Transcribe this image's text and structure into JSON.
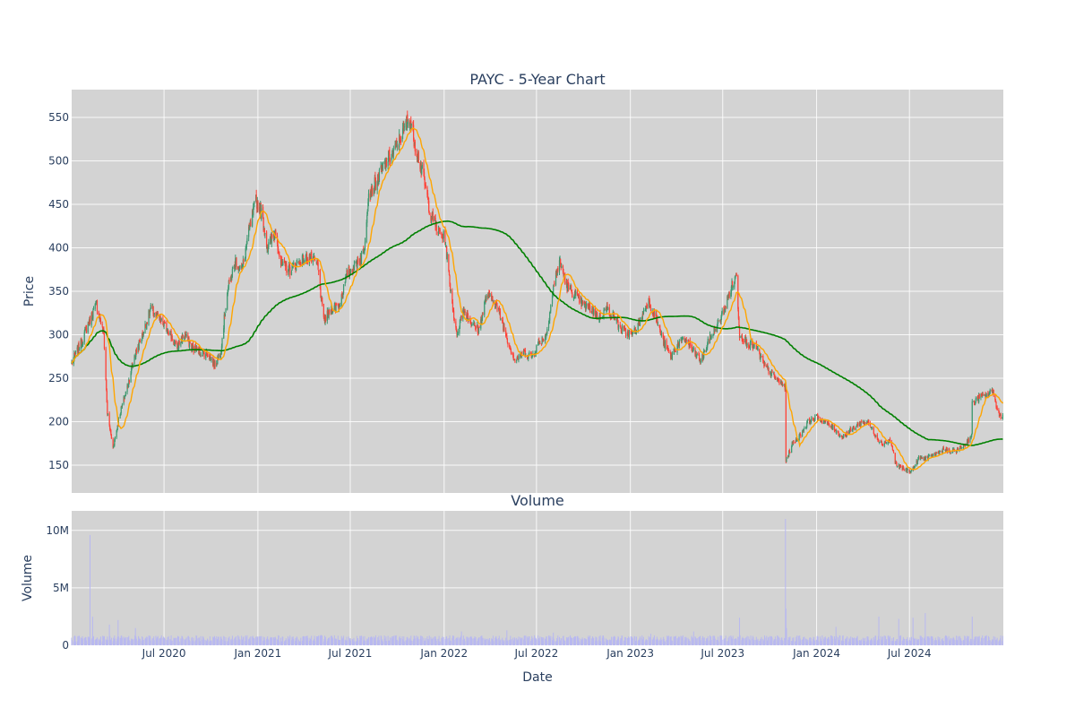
{
  "chart_data": [
    {
      "type": "candlestick",
      "title": "PAYC - 5-Year Chart",
      "xlabel": "",
      "ylabel": "Price",
      "ylim": [
        118,
        582
      ],
      "yticks": [
        150,
        200,
        250,
        300,
        350,
        400,
        450,
        500,
        550
      ],
      "colors": {
        "up": "#3d9970",
        "down": "#ff4136",
        "ma_short": "#ffa500",
        "ma_long": "#008000",
        "plot_bg": "#d3d3d3"
      },
      "close_waypoints": [
        [
          "2020-01-02",
          268
        ],
        [
          "2020-01-20",
          290
        ],
        [
          "2020-02-10",
          322
        ],
        [
          "2020-02-20",
          335
        ],
        [
          "2020-03-05",
          300
        ],
        [
          "2020-03-12",
          210
        ],
        [
          "2020-03-23",
          170
        ],
        [
          "2020-04-06",
          210
        ],
        [
          "2020-04-20",
          240
        ],
        [
          "2020-05-04",
          275
        ],
        [
          "2020-05-20",
          300
        ],
        [
          "2020-06-05",
          330
        ],
        [
          "2020-06-25",
          315
        ],
        [
          "2020-07-10",
          305
        ],
        [
          "2020-07-25",
          285
        ],
        [
          "2020-08-10",
          300
        ],
        [
          "2020-08-25",
          285
        ],
        [
          "2020-09-10",
          280
        ],
        [
          "2020-09-25",
          278
        ],
        [
          "2020-10-08",
          265
        ],
        [
          "2020-10-20",
          280
        ],
        [
          "2020-11-02",
          350
        ],
        [
          "2020-11-18",
          385
        ],
        [
          "2020-12-01",
          375
        ],
        [
          "2020-12-15",
          420
        ],
        [
          "2020-12-28",
          455
        ],
        [
          "2021-01-08",
          440
        ],
        [
          "2021-01-20",
          400
        ],
        [
          "2021-02-05",
          420
        ],
        [
          "2021-02-15",
          380
        ],
        [
          "2021-03-05",
          375
        ],
        [
          "2021-03-25",
          385
        ],
        [
          "2021-04-12",
          390
        ],
        [
          "2021-04-28",
          380
        ],
        [
          "2021-05-10",
          315
        ],
        [
          "2021-05-25",
          330
        ],
        [
          "2021-06-10",
          335
        ],
        [
          "2021-06-25",
          370
        ],
        [
          "2021-07-10",
          380
        ],
        [
          "2021-07-28",
          395
        ],
        [
          "2021-08-05",
          460
        ],
        [
          "2021-08-25",
          480
        ],
        [
          "2021-09-10",
          500
        ],
        [
          "2021-09-25",
          510
        ],
        [
          "2021-10-10",
          530
        ],
        [
          "2021-10-25",
          550
        ],
        [
          "2021-11-05",
          520
        ],
        [
          "2021-11-22",
          480
        ],
        [
          "2021-12-05",
          440
        ],
        [
          "2021-12-20",
          420
        ],
        [
          "2022-01-03",
          410
        ],
        [
          "2022-01-12",
          360
        ],
        [
          "2022-01-25",
          300
        ],
        [
          "2022-02-08",
          330
        ],
        [
          "2022-02-22",
          315
        ],
        [
          "2022-03-10",
          305
        ],
        [
          "2022-03-25",
          345
        ],
        [
          "2022-04-08",
          340
        ],
        [
          "2022-04-22",
          320
        ],
        [
          "2022-05-05",
          295
        ],
        [
          "2022-05-20",
          270
        ],
        [
          "2022-06-06",
          280
        ],
        [
          "2022-06-22",
          275
        ],
        [
          "2022-07-05",
          290
        ],
        [
          "2022-07-20",
          300
        ],
        [
          "2022-08-05",
          360
        ],
        [
          "2022-08-15",
          385
        ],
        [
          "2022-08-30",
          355
        ],
        [
          "2022-09-15",
          345
        ],
        [
          "2022-09-30",
          335
        ],
        [
          "2022-10-15",
          330
        ],
        [
          "2022-11-01",
          320
        ],
        [
          "2022-11-15",
          330
        ],
        [
          "2022-12-01",
          320
        ],
        [
          "2022-12-15",
          305
        ],
        [
          "2023-01-05",
          300
        ],
        [
          "2023-01-20",
          315
        ],
        [
          "2023-02-05",
          340
        ],
        [
          "2023-02-20",
          320
        ],
        [
          "2023-03-08",
          290
        ],
        [
          "2023-03-22",
          275
        ],
        [
          "2023-04-05",
          290
        ],
        [
          "2023-04-20",
          295
        ],
        [
          "2023-05-05",
          280
        ],
        [
          "2023-05-20",
          270
        ],
        [
          "2023-06-05",
          295
        ],
        [
          "2023-06-20",
          310
        ],
        [
          "2023-07-05",
          330
        ],
        [
          "2023-07-18",
          355
        ],
        [
          "2023-07-28",
          368
        ],
        [
          "2023-08-03",
          300
        ],
        [
          "2023-08-20",
          290
        ],
        [
          "2023-09-05",
          285
        ],
        [
          "2023-09-20",
          265
        ],
        [
          "2023-10-05",
          255
        ],
        [
          "2023-10-20",
          245
        ],
        [
          "2023-11-01",
          240
        ],
        [
          "2023-11-02",
          155
        ],
        [
          "2023-11-15",
          175
        ],
        [
          "2023-12-01",
          185
        ],
        [
          "2023-12-15",
          200
        ],
        [
          "2024-01-02",
          205
        ],
        [
          "2024-01-20",
          198
        ],
        [
          "2024-02-05",
          192
        ],
        [
          "2024-02-20",
          182
        ],
        [
          "2024-03-08",
          190
        ],
        [
          "2024-03-25",
          198
        ],
        [
          "2024-04-10",
          200
        ],
        [
          "2024-04-25",
          185
        ],
        [
          "2024-05-08",
          175
        ],
        [
          "2024-05-25",
          178
        ],
        [
          "2024-06-05",
          150
        ],
        [
          "2024-06-20",
          145
        ],
        [
          "2024-07-05",
          143
        ],
        [
          "2024-07-20",
          158
        ],
        [
          "2024-08-05",
          158
        ],
        [
          "2024-08-20",
          162
        ],
        [
          "2024-09-05",
          168
        ],
        [
          "2024-09-20",
          165
        ],
        [
          "2024-10-05",
          168
        ],
        [
          "2024-10-20",
          175
        ],
        [
          "2024-10-31",
          185
        ],
        [
          "2024-11-01",
          220
        ],
        [
          "2024-11-15",
          228
        ],
        [
          "2024-12-01",
          230
        ],
        [
          "2024-12-12",
          237
        ],
        [
          "2024-12-20",
          212
        ],
        [
          "2024-12-31",
          205
        ]
      ]
    },
    {
      "type": "bar",
      "title": "Volume",
      "xlabel": "Date",
      "ylabel": "Volume",
      "ylim": [
        0,
        11700000
      ],
      "yticks": [
        0,
        5000000,
        10000000
      ],
      "ytick_labels": [
        "0",
        "5M",
        "10M"
      ],
      "xlim": [
        "2020-01-02",
        "2025-01-01"
      ],
      "xticks": [
        "2020-07-01",
        "2021-01-01",
        "2021-07-01",
        "2022-01-01",
        "2022-07-01",
        "2023-01-01",
        "2023-07-01",
        "2024-01-01",
        "2024-07-01"
      ],
      "xtick_labels": [
        "Jul 2020",
        "Jan 2021",
        "Jul 2021",
        "Jan 2022",
        "Jul 2022",
        "Jan 2023",
        "Jul 2023",
        "Jan 2024",
        "Jul 2024"
      ],
      "colors": {
        "bar": "#b8b8f0",
        "plot_bg": "#d3d3d3"
      },
      "typical_volume": 600000,
      "spikes": [
        [
          "2020-02-07",
          9600000
        ],
        [
          "2020-02-12",
          2500000
        ],
        [
          "2020-03-16",
          1800000
        ],
        [
          "2020-04-02",
          2200000
        ],
        [
          "2020-05-06",
          1500000
        ],
        [
          "2021-05-05",
          900000
        ],
        [
          "2022-02-04",
          1200000
        ],
        [
          "2022-05-04",
          1300000
        ],
        [
          "2022-08-03",
          1100000
        ],
        [
          "2023-02-10",
          1000000
        ],
        [
          "2023-05-05",
          1200000
        ],
        [
          "2023-08-03",
          2400000
        ],
        [
          "2023-11-01",
          11000000
        ],
        [
          "2023-11-02",
          3200000
        ],
        [
          "2023-11-03",
          1500000
        ],
        [
          "2024-02-08",
          1600000
        ],
        [
          "2024-05-02",
          2500000
        ],
        [
          "2024-06-10",
          2300000
        ],
        [
          "2024-07-08",
          2400000
        ],
        [
          "2024-08-01",
          2800000
        ],
        [
          "2024-11-01",
          2500000
        ]
      ]
    }
  ]
}
